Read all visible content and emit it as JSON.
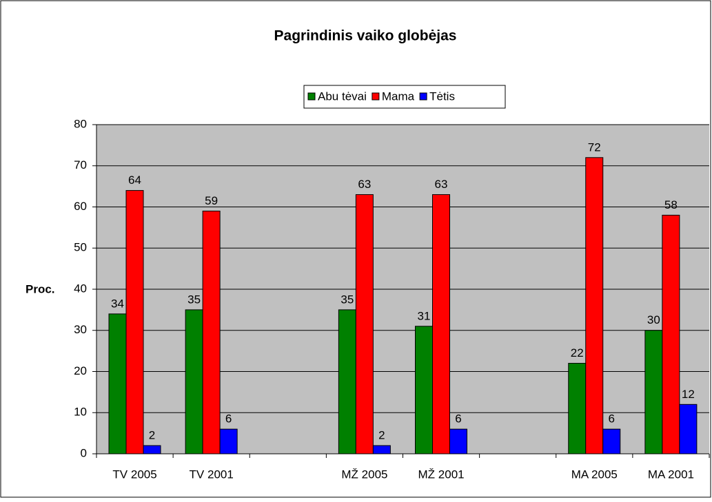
{
  "chart_data": {
    "type": "bar",
    "title": "Pagrindinis vaiko globėjas",
    "y_label": "Proc.",
    "categories": [
      "TV 2005",
      "TV 2001",
      null,
      "MŽ 2005",
      "MŽ 2001",
      null,
      "MA 2005",
      "MA 2001"
    ],
    "series": [
      {
        "name": "Abu tėvai",
        "color": "#008000",
        "values": [
          34,
          35,
          null,
          35,
          31,
          null,
          22,
          30
        ]
      },
      {
        "name": "Mama",
        "color": "#ff0000",
        "values": [
          64,
          59,
          null,
          63,
          63,
          null,
          72,
          58
        ]
      },
      {
        "name": "Tėtis",
        "color": "#0000ff",
        "values": [
          2,
          6,
          null,
          2,
          6,
          null,
          6,
          12
        ]
      }
    ],
    "ylim": [
      0,
      80
    ],
    "yticks": [
      0,
      10,
      20,
      30,
      40,
      50,
      60,
      70,
      80
    ],
    "grid": true,
    "legend": "top"
  }
}
